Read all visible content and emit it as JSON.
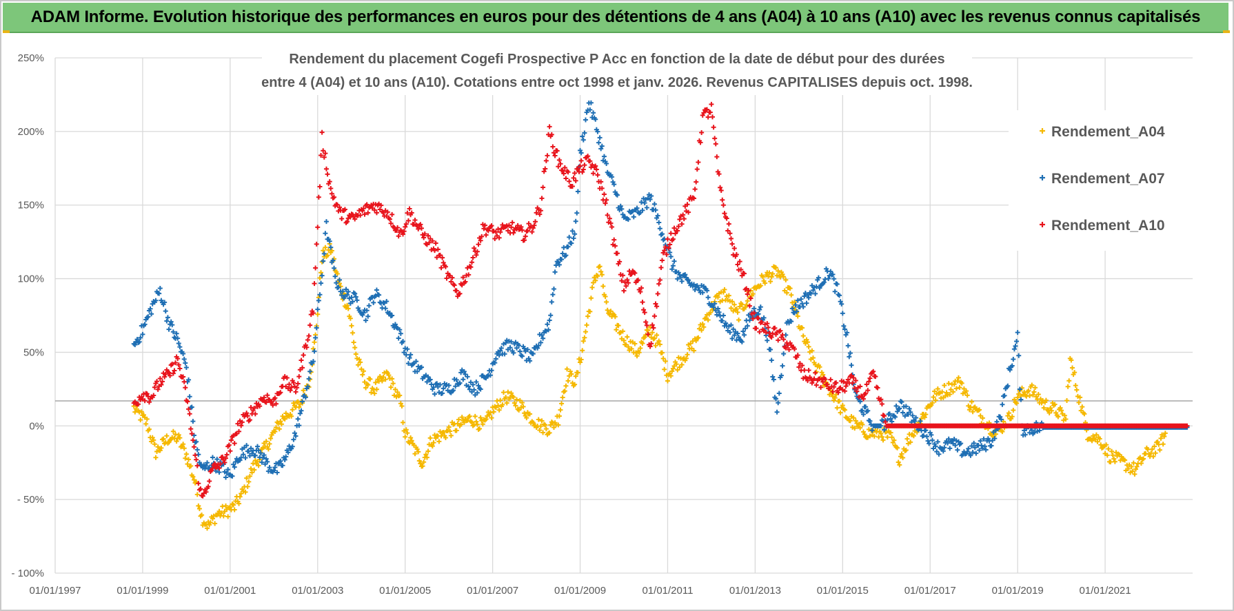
{
  "banner": {
    "title": "ADAM Informe. Evolution historique des performances en euros pour des détentions de 4 ans (A04) à 10 ans (A10) avec les revenus connus capitalisés"
  },
  "colors": {
    "banner_bg": "#7dc67a",
    "A04": "#f5b800",
    "A07": "#1f6fb4",
    "A10": "#e8141c",
    "grid": "#d9d9d9",
    "reference_line": "#a6a6a6"
  },
  "chart_data": {
    "type": "scatter",
    "marker": "plus",
    "title_lines": [
      "Rendement du placement Cogefi Prospective P Acc en fonction de la date de début pour des durées",
      "entre 4 (A04) et 10 ans (A10). Cotations entre oct 1998 et janv. 2026. Revenus CAPITALISES depuis oct. 1998."
    ],
    "xlabel": "",
    "ylabel": "",
    "x_range": [
      1997.0,
      2023.0
    ],
    "ylim": [
      -100,
      250
    ],
    "y_ticks": [
      250,
      200,
      150,
      100,
      50,
      0,
      -50,
      -100
    ],
    "y_tick_labels": [
      "250%",
      "200%",
      "150%",
      "100%",
      "50%",
      "0%",
      "- 50%",
      "- 100%"
    ],
    "x_ticks": [
      1997,
      1999,
      2001,
      2003,
      2005,
      2007,
      2009,
      2011,
      2013,
      2015,
      2017,
      2019,
      2021
    ],
    "x_tick_labels": [
      "01/01/1997",
      "01/01/1999",
      "01/01/2001",
      "01/01/2003",
      "01/01/2005",
      "01/01/2007",
      "01/01/2009",
      "01/01/2011",
      "01/01/2013",
      "01/01/2015",
      "01/01/2017",
      "01/01/2019",
      "01/01/2021"
    ],
    "reference_line_y": 17,
    "legend_position": "top-right",
    "series": [
      {
        "name": "Rendement_A04",
        "points": [
          [
            1998.8,
            12
          ],
          [
            1999.1,
            2
          ],
          [
            1999.3,
            -18
          ],
          [
            1999.6,
            -8
          ],
          [
            1999.8,
            -8
          ],
          [
            2000.0,
            -20
          ],
          [
            2000.2,
            -38
          ],
          [
            2000.35,
            -62
          ],
          [
            2000.5,
            -68
          ],
          [
            2000.7,
            -60
          ],
          [
            2000.9,
            -58
          ],
          [
            2001.1,
            -55
          ],
          [
            2001.3,
            -45
          ],
          [
            2001.5,
            -30
          ],
          [
            2001.8,
            -15
          ],
          [
            2002.0,
            -5
          ],
          [
            2002.2,
            5
          ],
          [
            2002.4,
            10
          ],
          [
            2002.6,
            15
          ],
          [
            2002.8,
            30
          ],
          [
            2002.95,
            60
          ],
          [
            2003.1,
            115
          ],
          [
            2003.3,
            120
          ],
          [
            2003.5,
            95
          ],
          [
            2003.7,
            80
          ],
          [
            2003.9,
            45
          ],
          [
            2004.1,
            30
          ],
          [
            2004.3,
            25
          ],
          [
            2004.6,
            35
          ],
          [
            2004.9,
            15
          ],
          [
            2005.0,
            -5
          ],
          [
            2005.2,
            -15
          ],
          [
            2005.4,
            -25
          ],
          [
            2005.6,
            -10
          ],
          [
            2005.9,
            -5
          ],
          [
            2006.2,
            0
          ],
          [
            2006.5,
            5
          ],
          [
            2006.8,
            0
          ],
          [
            2007.0,
            10
          ],
          [
            2007.3,
            20
          ],
          [
            2007.6,
            15
          ],
          [
            2007.9,
            5
          ],
          [
            2008.1,
            0
          ],
          [
            2008.3,
            -2
          ],
          [
            2008.5,
            5
          ],
          [
            2008.7,
            35
          ],
          [
            2008.9,
            30
          ],
          [
            2009.1,
            60
          ],
          [
            2009.3,
            95
          ],
          [
            2009.45,
            110
          ],
          [
            2009.6,
            80
          ],
          [
            2009.8,
            70
          ],
          [
            2010.0,
            60
          ],
          [
            2010.3,
            50
          ],
          [
            2010.6,
            65
          ],
          [
            2010.8,
            55
          ],
          [
            2011.0,
            35
          ],
          [
            2011.3,
            45
          ],
          [
            2011.6,
            55
          ],
          [
            2011.9,
            75
          ],
          [
            2012.1,
            85
          ],
          [
            2012.3,
            90
          ],
          [
            2012.6,
            75
          ],
          [
            2012.9,
            90
          ],
          [
            2013.2,
            100
          ],
          [
            2013.5,
            105
          ],
          [
            2013.8,
            90
          ],
          [
            2014.1,
            60
          ],
          [
            2014.4,
            40
          ],
          [
            2014.7,
            25
          ],
          [
            2015.0,
            10
          ],
          [
            2015.3,
            0
          ],
          [
            2015.6,
            -5
          ],
          [
            2015.9,
            -5
          ],
          [
            2016.1,
            -8
          ],
          [
            2016.3,
            -22
          ],
          [
            2016.5,
            -10
          ],
          [
            2016.8,
            5
          ],
          [
            2017.1,
            20
          ],
          [
            2017.4,
            25
          ],
          [
            2017.7,
            30
          ],
          [
            2017.9,
            15
          ],
          [
            2018.2,
            5
          ],
          [
            2018.5,
            -5
          ],
          [
            2018.8,
            5
          ],
          [
            2019.0,
            20
          ],
          [
            2019.3,
            25
          ],
          [
            2019.6,
            15
          ],
          [
            2019.9,
            10
          ],
          [
            2020.1,
            5
          ],
          [
            2020.2,
            45
          ],
          [
            2020.4,
            20
          ],
          [
            2020.6,
            -5
          ],
          [
            2020.9,
            -10
          ],
          [
            2021.1,
            -20
          ],
          [
            2021.4,
            -25
          ],
          [
            2021.7,
            -30
          ],
          [
            2021.9,
            -20
          ],
          [
            2022.2,
            -15
          ],
          [
            2022.4,
            -5
          ]
        ]
      },
      {
        "name": "Rendement_A07",
        "points": [
          [
            1998.8,
            55
          ],
          [
            1999.0,
            65
          ],
          [
            1999.2,
            80
          ],
          [
            1999.4,
            92
          ],
          [
            1999.6,
            70
          ],
          [
            1999.8,
            58
          ],
          [
            2000.0,
            40
          ],
          [
            2000.2,
            -10
          ],
          [
            2000.35,
            -30
          ],
          [
            2000.6,
            -25
          ],
          [
            2000.8,
            -28
          ],
          [
            2001.0,
            -35
          ],
          [
            2001.2,
            -20
          ],
          [
            2001.5,
            -15
          ],
          [
            2001.7,
            -20
          ],
          [
            2001.9,
            -28
          ],
          [
            2002.1,
            -30
          ],
          [
            2002.3,
            -20
          ],
          [
            2002.5,
            -5
          ],
          [
            2002.7,
            20
          ],
          [
            2002.9,
            45
          ],
          [
            2003.05,
            90
          ],
          [
            2003.2,
            135
          ],
          [
            2003.4,
            100
          ],
          [
            2003.6,
            90
          ],
          [
            2003.9,
            85
          ],
          [
            2004.1,
            75
          ],
          [
            2004.3,
            90
          ],
          [
            2004.6,
            80
          ],
          [
            2004.9,
            60
          ],
          [
            2005.1,
            45
          ],
          [
            2005.4,
            35
          ],
          [
            2005.7,
            25
          ],
          [
            2006.0,
            25
          ],
          [
            2006.3,
            35
          ],
          [
            2006.6,
            25
          ],
          [
            2006.9,
            35
          ],
          [
            2007.1,
            50
          ],
          [
            2007.4,
            55
          ],
          [
            2007.7,
            50
          ],
          [
            2007.9,
            45
          ],
          [
            2008.1,
            60
          ],
          [
            2008.3,
            70
          ],
          [
            2008.45,
            110
          ],
          [
            2008.7,
            120
          ],
          [
            2008.9,
            135
          ],
          [
            2009.0,
            185
          ],
          [
            2009.2,
            220
          ],
          [
            2009.4,
            200
          ],
          [
            2009.6,
            175
          ],
          [
            2009.8,
            160
          ],
          [
            2010.0,
            140
          ],
          [
            2010.3,
            145
          ],
          [
            2010.6,
            155
          ],
          [
            2010.9,
            130
          ],
          [
            2011.1,
            110
          ],
          [
            2011.3,
            100
          ],
          [
            2011.6,
            95
          ],
          [
            2011.9,
            90
          ],
          [
            2012.1,
            80
          ],
          [
            2012.4,
            65
          ],
          [
            2012.7,
            60
          ],
          [
            2012.9,
            75
          ],
          [
            2013.1,
            80
          ],
          [
            2013.3,
            60
          ],
          [
            2013.5,
            10
          ],
          [
            2013.7,
            65
          ],
          [
            2013.9,
            80
          ],
          [
            2014.1,
            85
          ],
          [
            2014.4,
            95
          ],
          [
            2014.7,
            105
          ],
          [
            2014.9,
            90
          ],
          [
            2015.1,
            60
          ],
          [
            2015.3,
            20
          ],
          [
            2015.5,
            10
          ],
          [
            2015.7,
            0
          ],
          [
            2015.9,
            0
          ],
          [
            2016.1,
            5
          ],
          [
            2016.3,
            15
          ],
          [
            2016.6,
            5
          ],
          [
            2016.9,
            -5
          ],
          [
            2017.2,
            -15
          ],
          [
            2017.5,
            -12
          ],
          [
            2017.8,
            -18
          ],
          [
            2018.1,
            -15
          ],
          [
            2018.4,
            -10
          ],
          [
            2018.6,
            5
          ],
          [
            2018.8,
            35
          ],
          [
            2019.0,
            60
          ],
          [
            2019.1,
            -2
          ],
          [
            2019.6,
            -1
          ],
          [
            2020.0,
            -1
          ],
          [
            2020.5,
            -1
          ],
          [
            2021.0,
            -1
          ],
          [
            2021.5,
            -1
          ],
          [
            2022.0,
            -1
          ],
          [
            2022.5,
            -1
          ],
          [
            2022.9,
            -1
          ]
        ]
      },
      {
        "name": "Rendement_A10",
        "points": [
          [
            1998.8,
            15
          ],
          [
            1999.0,
            22
          ],
          [
            1999.2,
            20
          ],
          [
            1999.4,
            30
          ],
          [
            1999.6,
            35
          ],
          [
            1999.8,
            45
          ],
          [
            2000.0,
            20
          ],
          [
            2000.2,
            -20
          ],
          [
            2000.35,
            -50
          ],
          [
            2000.6,
            -30
          ],
          [
            2000.8,
            -25
          ],
          [
            2001.0,
            -15
          ],
          [
            2001.2,
            0
          ],
          [
            2001.5,
            10
          ],
          [
            2001.8,
            20
          ],
          [
            2002.0,
            15
          ],
          [
            2002.2,
            30
          ],
          [
            2002.5,
            25
          ],
          [
            2002.7,
            50
          ],
          [
            2002.9,
            80
          ],
          [
            2003.1,
            195
          ],
          [
            2003.3,
            160
          ],
          [
            2003.5,
            145
          ],
          [
            2003.8,
            140
          ],
          [
            2004.0,
            145
          ],
          [
            2004.3,
            150
          ],
          [
            2004.6,
            145
          ],
          [
            2004.9,
            130
          ],
          [
            2005.1,
            145
          ],
          [
            2005.4,
            130
          ],
          [
            2005.7,
            120
          ],
          [
            2006.0,
            100
          ],
          [
            2006.2,
            90
          ],
          [
            2006.5,
            110
          ],
          [
            2006.8,
            135
          ],
          [
            2007.1,
            130
          ],
          [
            2007.4,
            135
          ],
          [
            2007.7,
            130
          ],
          [
            2007.9,
            135
          ],
          [
            2008.1,
            150
          ],
          [
            2008.3,
            200
          ],
          [
            2008.5,
            180
          ],
          [
            2008.8,
            165
          ],
          [
            2009.0,
            175
          ],
          [
            2009.2,
            180
          ],
          [
            2009.4,
            170
          ],
          [
            2009.6,
            150
          ],
          [
            2009.8,
            120
          ],
          [
            2010.0,
            95
          ],
          [
            2010.2,
            105
          ],
          [
            2010.4,
            90
          ],
          [
            2010.6,
            55
          ],
          [
            2010.9,
            115
          ],
          [
            2011.1,
            130
          ],
          [
            2011.4,
            145
          ],
          [
            2011.6,
            155
          ],
          [
            2011.8,
            210
          ],
          [
            2012.0,
            215
          ],
          [
            2012.2,
            160
          ],
          [
            2012.5,
            120
          ],
          [
            2012.8,
            95
          ],
          [
            2013.0,
            70
          ],
          [
            2013.3,
            65
          ],
          [
            2013.6,
            60
          ],
          [
            2013.9,
            50
          ],
          [
            2014.1,
            35
          ],
          [
            2014.5,
            30
          ],
          [
            2014.9,
            25
          ],
          [
            2015.2,
            30
          ],
          [
            2015.5,
            20
          ],
          [
            2015.7,
            35
          ],
          [
            2016.0,
            0
          ],
          [
            2016.5,
            0
          ],
          [
            2017.0,
            0
          ],
          [
            2017.5,
            0
          ],
          [
            2018.0,
            0
          ],
          [
            2018.5,
            0
          ],
          [
            2019.0,
            0
          ],
          [
            2019.5,
            0
          ],
          [
            2020.0,
            0
          ],
          [
            2020.5,
            0
          ],
          [
            2021.0,
            0
          ],
          [
            2021.5,
            0
          ],
          [
            2022.0,
            0
          ],
          [
            2022.5,
            0
          ],
          [
            2022.9,
            0
          ]
        ]
      }
    ]
  }
}
